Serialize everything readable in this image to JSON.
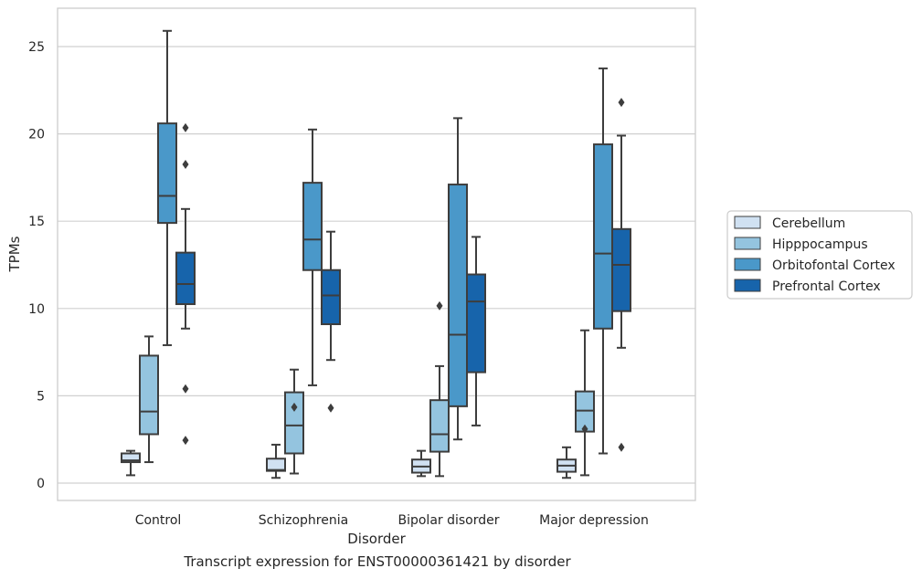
{
  "caption": "Transcript expression for ENST00000361421 by disorder",
  "colors": {
    "Cerebellum": "#d0e1f2",
    "Hipppocampus": "#94c4df",
    "Orbitofontal Cortex": "#4a98c9",
    "Prefrontal Cortex": "#1764ab",
    "box_edge": "#3d3d3d",
    "grid": "#d0d0d0"
  },
  "chart_data": {
    "type": "box",
    "title": "",
    "xlabel": "Disorder",
    "ylabel": "TPMs",
    "ylim": [
      -1,
      27
    ],
    "yticks": [
      0,
      5,
      10,
      15,
      20,
      25
    ],
    "grid": "horizontal",
    "legend_placement": "right",
    "categories": [
      "Control",
      "Schizophrenia",
      "Bipolar disorder",
      "Major depression"
    ],
    "series": [
      {
        "name": "Cerebellum",
        "boxes": [
          {
            "whislo": 0.45,
            "q1": 1.2,
            "med": 1.3,
            "q3": 1.7,
            "whishi": 1.85,
            "fliers": []
          },
          {
            "whislo": 0.3,
            "q1": 0.7,
            "med": 0.75,
            "q3": 1.4,
            "whishi": 2.2,
            "fliers": []
          },
          {
            "whislo": 0.4,
            "q1": 0.6,
            "med": 0.95,
            "q3": 1.35,
            "whishi": 1.85,
            "fliers": []
          },
          {
            "whislo": 0.3,
            "q1": 0.65,
            "med": 1.0,
            "q3": 1.35,
            "whishi": 2.05,
            "fliers": []
          }
        ]
      },
      {
        "name": "Hipppocampus",
        "boxes": [
          {
            "whislo": 1.2,
            "q1": 2.8,
            "med": 4.1,
            "q3": 7.3,
            "whishi": 8.4,
            "fliers": []
          },
          {
            "whislo": 0.55,
            "q1": 1.7,
            "med": 3.3,
            "q3": 5.2,
            "whishi": 6.5,
            "fliers": [
              4.35
            ]
          },
          {
            "whislo": 0.4,
            "q1": 1.8,
            "med": 2.8,
            "q3": 4.75,
            "whishi": 6.7,
            "fliers": [
              10.15
            ]
          },
          {
            "whislo": 0.45,
            "q1": 2.95,
            "med": 4.15,
            "q3": 5.25,
            "whishi": 8.75,
            "fliers": [
              3.1
            ]
          }
        ]
      },
      {
        "name": "Orbitofontal Cortex",
        "boxes": [
          {
            "whislo": 7.9,
            "q1": 14.9,
            "med": 16.45,
            "q3": 20.6,
            "whishi": 25.9,
            "fliers": []
          },
          {
            "whislo": 5.6,
            "q1": 12.2,
            "med": 13.95,
            "q3": 17.2,
            "whishi": 20.25,
            "fliers": []
          },
          {
            "whislo": 2.5,
            "q1": 4.4,
            "med": 8.5,
            "q3": 17.1,
            "whishi": 20.9,
            "fliers": []
          },
          {
            "whislo": 1.7,
            "q1": 8.85,
            "med": 13.15,
            "q3": 19.4,
            "whishi": 23.75,
            "fliers": []
          }
        ]
      },
      {
        "name": "Prefrontal Cortex",
        "boxes": [
          {
            "whislo": 8.85,
            "q1": 10.25,
            "med": 11.4,
            "q3": 13.2,
            "whishi": 15.7,
            "fliers": [
              20.35,
              18.25,
              5.4,
              2.45
            ]
          },
          {
            "whislo": 7.05,
            "q1": 9.1,
            "med": 10.75,
            "q3": 12.2,
            "whishi": 14.4,
            "fliers": [
              4.3
            ]
          },
          {
            "whislo": 3.3,
            "q1": 6.35,
            "med": 10.4,
            "q3": 11.95,
            "whishi": 14.1,
            "fliers": []
          },
          {
            "whislo": 7.75,
            "q1": 9.85,
            "med": 12.5,
            "q3": 14.55,
            "whishi": 19.9,
            "fliers": [
              21.8,
              2.05
            ]
          }
        ]
      }
    ]
  }
}
